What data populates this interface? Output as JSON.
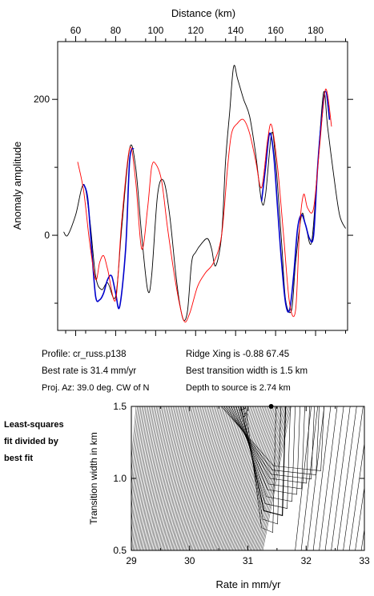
{
  "chart_data": [
    {
      "type": "line",
      "xlabel": "Distance (km)",
      "ylabel": "Anomaly amplitude",
      "xlim": [
        51,
        196
      ],
      "ylim": [
        -140,
        285
      ],
      "x_ticks": [
        60,
        80,
        100,
        120,
        140,
        160,
        180
      ],
      "y_ticks": [
        0,
        200
      ],
      "series": [
        {
          "color": "#000000",
          "x": [
            54,
            56,
            60,
            64,
            67,
            70,
            73,
            76,
            80,
            83,
            87,
            90,
            93,
            96,
            98,
            101,
            104,
            107,
            110,
            112,
            114,
            116,
            118,
            120,
            123,
            126,
            128,
            130,
            133,
            135,
            137,
            139,
            141,
            144,
            147,
            150,
            153,
            155,
            158,
            160,
            163,
            165,
            168,
            170,
            173,
            175,
            178,
            181,
            184,
            186,
            189,
            192,
            195
          ],
          "y": [
            5,
            0,
            30,
            75,
            25,
            -60,
            -80,
            -70,
            -90,
            10,
            128,
            100,
            0,
            -80,
            -60,
            60,
            80,
            30,
            -55,
            -100,
            -125,
            -110,
            -40,
            -25,
            -12,
            -5,
            -20,
            -45,
            0,
            110,
            180,
            248,
            230,
            200,
            175,
            120,
            50,
            60,
            150,
            110,
            -10,
            -95,
            -110,
            -40,
            30,
            15,
            -10,
            100,
            210,
            160,
            90,
            30,
            10
          ]
        },
        {
          "color": "#0000cc",
          "x": [
            64,
            66,
            68,
            70,
            72,
            74,
            76,
            78,
            80,
            82,
            85,
            87,
            89
          ],
          "y": [
            75,
            55,
            -20,
            -90,
            -95,
            -85,
            -65,
            -60,
            -85,
            -105,
            -20,
            110,
            128
          ]
        },
        {
          "color": "#0000cc",
          "x": [
            153,
            155,
            157,
            159,
            161,
            163,
            165,
            167,
            169,
            171,
            173,
            175,
            177,
            179,
            181,
            183,
            185,
            187
          ],
          "y": [
            50,
            100,
            150,
            120,
            40,
            -40,
            -100,
            -110,
            -60,
            10,
            30,
            15,
            -5,
            0,
            100,
            170,
            212,
            170
          ]
        },
        {
          "color": "#ff0000",
          "x": [
            61,
            64,
            67,
            70,
            72,
            74,
            76,
            80,
            83,
            87,
            90,
            93,
            96,
            98,
            100,
            103,
            106,
            110,
            114,
            117,
            121,
            125,
            129,
            133,
            136,
            138,
            141,
            144,
            147,
            150,
            153,
            156,
            158,
            161,
            164,
            167,
            170,
            172,
            174,
            176,
            179,
            182,
            185,
            188
          ],
          "y": [
            108,
            65,
            -10,
            -65,
            -40,
            -30,
            -50,
            -95,
            20,
            128,
            80,
            -20,
            40,
            100,
            105,
            80,
            10,
            -70,
            -125,
            -115,
            -75,
            -55,
            -40,
            0,
            100,
            150,
            165,
            170,
            150,
            110,
            70,
            140,
            162,
            100,
            0,
            -100,
            -110,
            10,
            60,
            40,
            40,
            130,
            215,
            160
          ]
        }
      ]
    },
    {
      "type": "contour",
      "xlabel": "Rate in mm/yr",
      "ylabel": "Transition width in km",
      "xlim": [
        29,
        33
      ],
      "ylim": [
        0.5,
        1.5
      ],
      "x_ticks": [
        29,
        30,
        31,
        32,
        33
      ],
      "y_ticks": [
        0.5,
        1.0,
        1.5
      ],
      "best_fit": {
        "rate": 31.4,
        "width": 1.5
      },
      "contour_label": "1.5"
    }
  ],
  "info": {
    "profile": "Profile: cr_russ.p138",
    "best_rate": "Best rate is 31.4 mm/yr",
    "proj_az": "Proj. Az: 39.0 deg. CW of N",
    "ridge_xing": "Ridge Xing is -0.88 67.45",
    "best_width": "Best transition width is 1.5 km",
    "depth": "Depth to source is   2.74 km"
  },
  "side_note": [
    "Least-squares",
    "fit divided by",
    "best fit"
  ]
}
